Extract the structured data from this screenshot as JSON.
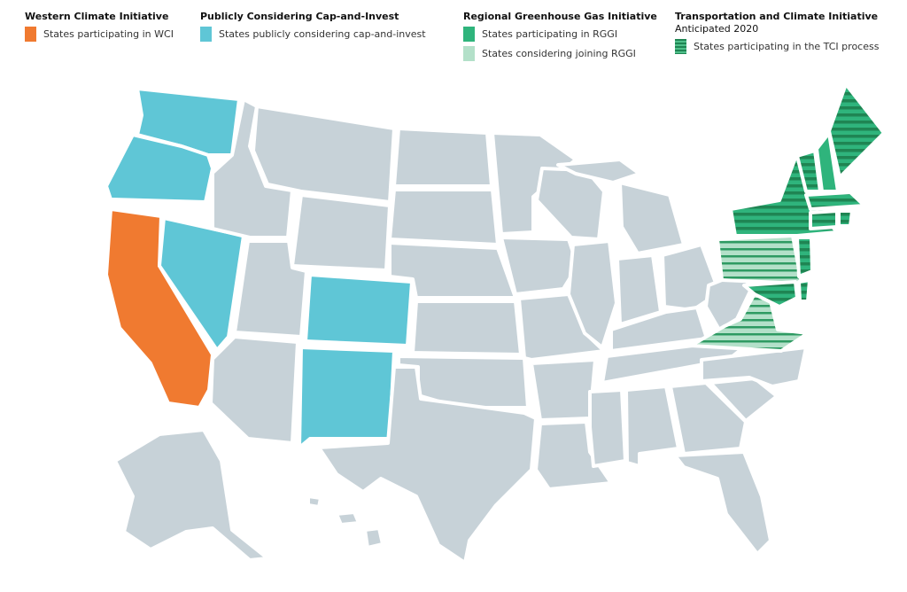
{
  "colors": {
    "base": "#c7d2d8",
    "wci": "#f07a30",
    "cap_invest": "#5fc6d6",
    "rggi": "#2fb47c",
    "rggi_considering": "#b3e0c9",
    "tci_stripe": "#1f8553"
  },
  "legend": [
    {
      "title": "Western Climate Initiative",
      "items": [
        {
          "key": "wci",
          "label": "States participating in WCI"
        }
      ]
    },
    {
      "title": "Publicly Considering Cap-and-Invest",
      "items": [
        {
          "key": "cap_invest",
          "label": "States publicly considering cap-and-invest"
        }
      ]
    },
    {
      "title": "Regional Greenhouse Gas Initiative",
      "items": [
        {
          "key": "rggi",
          "label": "States participating in RGGI"
        },
        {
          "key": "rggi_considering",
          "label": "States considering joining RGGI"
        }
      ]
    },
    {
      "title": "Transportation and Climate Initiative",
      "subtitle": "Anticipated 2020",
      "items": [
        {
          "key": "tci",
          "label": "States participating in the TCI process"
        }
      ]
    }
  ],
  "map": {
    "regions": {
      "WA": "cap_invest",
      "OR": "cap_invest",
      "NV": "cap_invest",
      "CO": "cap_invest",
      "NM": "cap_invest",
      "CA": "wci",
      "NH": "rggi",
      "ME": "rggi+tci",
      "VT": "rggi+tci",
      "NY": "rggi+tci",
      "MA": "rggi+tci",
      "CT": "rggi+tci",
      "RI": "rggi+tci",
      "NJ": "rggi+tci",
      "MD": "rggi+tci",
      "DE": "rggi+tci",
      "PA": "rggi_considering+tci",
      "VA": "rggi_considering+tci"
    }
  }
}
